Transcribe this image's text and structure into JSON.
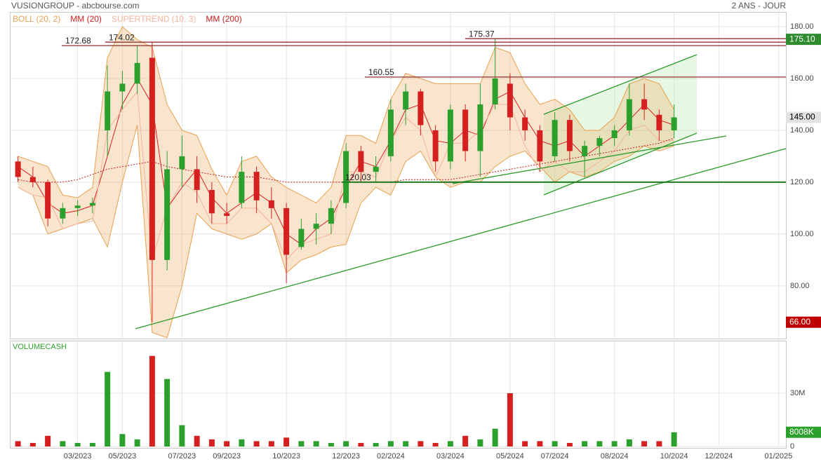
{
  "chart_data": [
    {
      "type": "candlestick",
      "title": "VUSIONGROUP - abcbourse.com",
      "subtitle": "2 ANS - JOUR",
      "up_color": "#2ca02c",
      "down_color": "#d62020",
      "open": [
        128,
        122,
        120,
        106,
        110,
        111,
        140,
        155,
        158,
        168,
        90,
        125,
        125,
        117,
        108,
        112,
        124,
        113,
        110,
        95,
        102,
        104,
        112,
        132,
        124,
        130,
        148,
        155,
        140,
        128,
        148,
        132,
        150,
        158,
        145,
        140,
        130,
        144,
        130,
        134,
        137,
        140,
        152,
        146,
        140,
        null,
        null,
        null,
        null,
        null,
        null,
        null
      ],
      "high": [
        130,
        126,
        121,
        112,
        113,
        114,
        165,
        163,
        172.68,
        174.02,
        132,
        138,
        130,
        120,
        112,
        130,
        126,
        118,
        112,
        106,
        108,
        113,
        135,
        134,
        130,
        152,
        158,
        156,
        142,
        150,
        150,
        158,
        175.37,
        162,
        148,
        142,
        147,
        146,
        136,
        138,
        142,
        158,
        158,
        148,
        150,
        null,
        null,
        null,
        null,
        null,
        null,
        null
      ],
      "low": [
        120,
        118,
        103,
        104,
        107,
        108,
        130,
        148,
        154,
        66,
        86,
        118,
        112,
        104,
        104,
        110,
        108,
        106,
        81,
        94,
        96,
        100,
        110,
        120,
        120,
        128,
        142,
        138,
        124,
        125,
        128,
        122,
        148,
        140,
        136,
        124,
        128,
        128,
        122,
        130,
        134,
        138,
        144,
        136,
        137,
        null,
        null,
        null,
        null,
        null,
        null,
        null
      ],
      "close": [
        122,
        120,
        106,
        110,
        111,
        112,
        155,
        158,
        166,
        90,
        125,
        130,
        117,
        108,
        107,
        124,
        113,
        110,
        92,
        102,
        104,
        110,
        132,
        124,
        126,
        148,
        155,
        142,
        128,
        148,
        132,
        150,
        160,
        145,
        140,
        128,
        144,
        132,
        134,
        137,
        140,
        152,
        148,
        140,
        145,
        null,
        null,
        null,
        null,
        null,
        null,
        null
      ],
      "series": [
        {
          "name": "BOLL (20, 2)",
          "color": "#e8a050",
          "upper": [
            130,
            128,
            126,
            115,
            114,
            118,
            168,
            180,
            175,
            172,
            150,
            140,
            138,
            125,
            115,
            128,
            130,
            122,
            118,
            115,
            112,
            118,
            138,
            138,
            135,
            152,
            162,
            160,
            158,
            158,
            158,
            158,
            172,
            170,
            158,
            150,
            152,
            148,
            140,
            140,
            145,
            158,
            160,
            158,
            148,
            null,
            null,
            null,
            null,
            null,
            null,
            null
          ],
          "lower": [
            118,
            115,
            100,
            102,
            104,
            106,
            95,
            120,
            142,
            62,
            60,
            80,
            108,
            102,
            100,
            98,
            100,
            104,
            85,
            90,
            92,
            95,
            96,
            112,
            118,
            115,
            128,
            132,
            122,
            118,
            120,
            120,
            126,
            130,
            132,
            126,
            120,
            124,
            122,
            124,
            128,
            130,
            134,
            132,
            134,
            null,
            null,
            null,
            null,
            null,
            null,
            null
          ]
        },
        {
          "name": "MM (20)",
          "color": "#d62020",
          "values": [
            126,
            122,
            112,
            108,
            109,
            111,
            130,
            150,
            160,
            150,
            110,
            118,
            125,
            114,
            108,
            112,
            116,
            112,
            100,
            96,
            102,
            106,
            118,
            128,
            126,
            136,
            148,
            150,
            136,
            135,
            140,
            138,
            152,
            155,
            145,
            136,
            134,
            136,
            130,
            134,
            138,
            144,
            150,
            144,
            142,
            null,
            null,
            null,
            null,
            null,
            null,
            null
          ]
        },
        {
          "name": "SUPERTREND (10, 3)",
          "color": "#f4b49c",
          "values": [
            118,
            115,
            114,
            102,
            104,
            105,
            140,
            148,
            155,
            90,
            110,
            120,
            116,
            104,
            104,
            110,
            110,
            104,
            90,
            96,
            98,
            100,
            124,
            124,
            122,
            136,
            145,
            140,
            122,
            135,
            135,
            140,
            150,
            150,
            134,
            124,
            128,
            124,
            124,
            128,
            132,
            140,
            142,
            136,
            136,
            null,
            null,
            null,
            null,
            null,
            null,
            null
          ]
        },
        {
          "name": "MM (200)",
          "color": "#c02020",
          "dashed": true,
          "values": [
            121,
            120,
            120,
            120,
            121,
            123,
            125,
            126,
            127,
            128,
            126,
            125,
            124,
            123,
            122,
            122,
            122,
            121,
            120,
            120,
            120,
            120,
            120,
            120,
            120,
            120,
            121,
            121,
            121,
            121,
            122,
            123,
            124,
            125,
            126,
            127,
            128,
            129,
            130,
            131,
            132,
            133,
            134,
            135,
            137,
            null,
            null,
            null,
            null,
            null,
            null,
            null
          ]
        }
      ],
      "levels": [
        {
          "value": 172.68,
          "color": "#8b1a1a"
        },
        {
          "value": 174.02,
          "color": "#8b1a1a"
        },
        {
          "value": 175.37,
          "color": "#8b1a1a"
        },
        {
          "value": 160.55,
          "color": "#8b1a1a"
        },
        {
          "value": 120.03,
          "color": "#1f7a1f"
        }
      ],
      "price_tags": [
        {
          "value": 175.1,
          "label": "175.10",
          "color": "#2e8b2e",
          "text_color": "#ffffff"
        },
        {
          "value": 145,
          "label": "145.00",
          "color": "#e2e2e2",
          "text_color": "#000000"
        },
        {
          "value": 66,
          "label": "66.00",
          "color": "#c00000",
          "text_color": "#ffffff"
        }
      ],
      "ylim": [
        59.7,
        185.4
      ],
      "yticks": [
        {
          "value": 80,
          "label": "80.00"
        },
        {
          "value": 100,
          "label": "100.00"
        },
        {
          "value": 120,
          "label": "120.00"
        },
        {
          "value": 140,
          "label": "140.00"
        },
        {
          "value": 160,
          "label": "160.00"
        },
        {
          "value": 180,
          "label": "180.00"
        }
      ],
      "grid": true
    },
    {
      "type": "bar",
      "title": "VOLUMECASH",
      "title_color": "#2ca02c",
      "categories": [
        null,
        null,
        null,
        null,
        "03/2023",
        null,
        null,
        "05/2023",
        null,
        null,
        null,
        "07/2023",
        null,
        null,
        "09/2023",
        null,
        null,
        null,
        "10/2023",
        null,
        null,
        null,
        "12/2023",
        null,
        null,
        "02/2024",
        null,
        null,
        null,
        "03/2024",
        null,
        null,
        null,
        "05/2024",
        null,
        null,
        "07/2024",
        null,
        null,
        null,
        "08/2024",
        null,
        null,
        null,
        "10/2024",
        null,
        null,
        "12/2024",
        null,
        null,
        null,
        "01/2025"
      ],
      "values": [
        3000000,
        2000000,
        6000000,
        3000000,
        2000000,
        2000000,
        42000000,
        7000000,
        4000000,
        51000000,
        38000000,
        12000000,
        6000000,
        4000000,
        3000000,
        4000000,
        3000000,
        3000000,
        5000000,
        3000000,
        3000000,
        2000000,
        3000000,
        2000000,
        2000000,
        3000000,
        3000000,
        3000000,
        2000000,
        3000000,
        6000000,
        4000000,
        10000000,
        30000000,
        3000000,
        3000000,
        3000000,
        2000000,
        3000000,
        3000000,
        3000000,
        4000000,
        3000000,
        3000000,
        8008000,
        null,
        null,
        null,
        null,
        null,
        null,
        null
      ],
      "value_tag": {
        "value": 8008000,
        "label": "8008K",
        "color": "#2ca02c"
      },
      "ylim": [
        0,
        59200000
      ],
      "yticks": [
        0,
        {
          "value": 30000000,
          "label": "30M"
        }
      ],
      "grid": true
    }
  ]
}
